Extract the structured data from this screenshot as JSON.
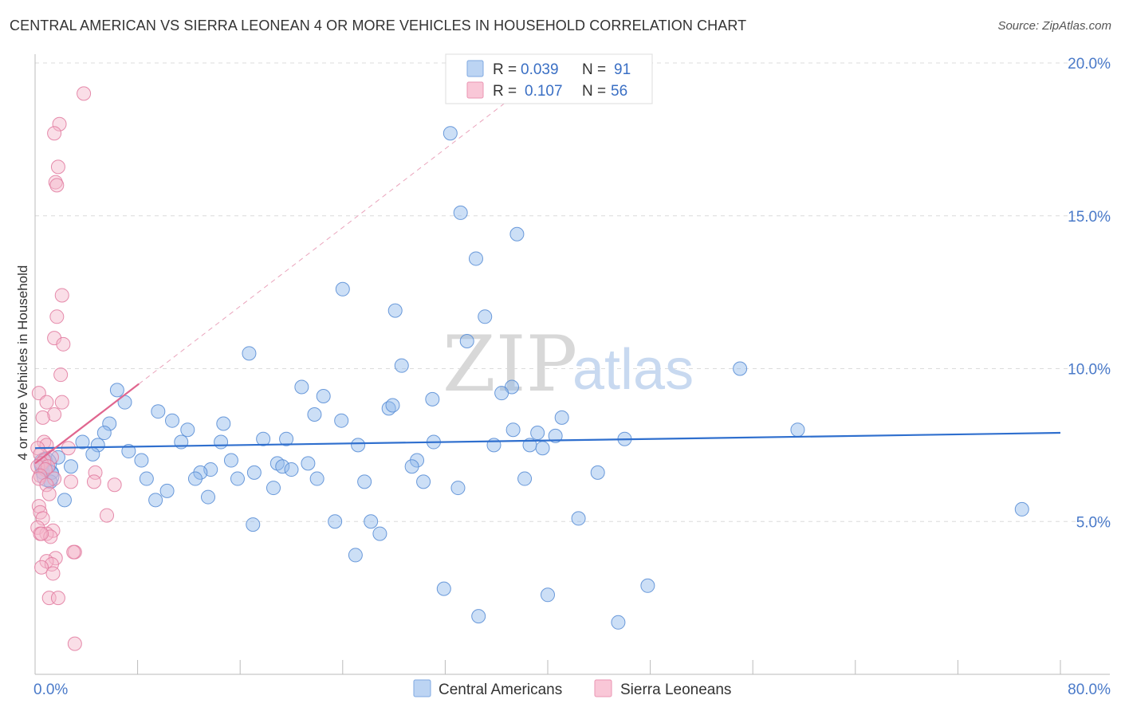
{
  "title": "CENTRAL AMERICAN VS SIERRA LEONEAN 4 OR MORE VEHICLES IN HOUSEHOLD CORRELATION CHART",
  "source": "Source: ZipAtlas.com",
  "watermark": {
    "zip": "ZIP",
    "atlas": "atlas"
  },
  "chart_data": {
    "type": "scatter",
    "xlabel": "",
    "ylabel": "4 or more Vehicles in Household",
    "xlim": [
      0,
      80
    ],
    "ylim": [
      0,
      20.6
    ],
    "x_tick_labels": [
      {
        "value": 0,
        "label": "0.0%"
      },
      {
        "value": 80,
        "label": "80.0%"
      }
    ],
    "y_tick_labels": [
      {
        "value": 5,
        "label": "5.0%"
      },
      {
        "value": 10,
        "label": "10.0%"
      },
      {
        "value": 15,
        "label": "15.0%"
      },
      {
        "value": 20,
        "label": "20.0%"
      }
    ],
    "legend": [
      {
        "name": "Central Americans",
        "r_label": "R =",
        "r": "0.039",
        "n_label": "N =",
        "n": "91",
        "color": "#8db8ec",
        "stroke": "#5b8fd6"
      },
      {
        "name": "Sierra Leoneans",
        "r_label": "R =",
        "r": "0.107",
        "n_label": "N =",
        "n": "56",
        "color": "#f5b5ca",
        "stroke": "#e27ea2"
      }
    ],
    "series": [
      {
        "name": "Central Americans",
        "color": "#8db8ec",
        "stroke": "#5b8fd6",
        "trend": {
          "x": [
            0,
            80
          ],
          "y": [
            7.4,
            7.9
          ],
          "color": "#2f6fce"
        },
        "points": [
          [
            32.4,
            17.7
          ],
          [
            33.2,
            15.1
          ],
          [
            37.6,
            14.4
          ],
          [
            34.4,
            13.6
          ],
          [
            24,
            12.6
          ],
          [
            28.1,
            11.9
          ],
          [
            35.1,
            11.7
          ],
          [
            33.7,
            10.9
          ],
          [
            16.7,
            10.5
          ],
          [
            28.6,
            10.1
          ],
          [
            55,
            10.0
          ],
          [
            6.4,
            9.3
          ],
          [
            20.8,
            9.4
          ],
          [
            37.2,
            9.4
          ],
          [
            36.4,
            9.2
          ],
          [
            22.5,
            9.1
          ],
          [
            31,
            9.0
          ],
          [
            7.0,
            8.9
          ],
          [
            27.6,
            8.7
          ],
          [
            27.9,
            8.8
          ],
          [
            9.6,
            8.6
          ],
          [
            21.8,
            8.5
          ],
          [
            23.9,
            8.3
          ],
          [
            41.1,
            8.4
          ],
          [
            10.7,
            8.3
          ],
          [
            5.8,
            8.2
          ],
          [
            14.7,
            8.2
          ],
          [
            11.9,
            8.0
          ],
          [
            37.3,
            8.0
          ],
          [
            39.2,
            7.9
          ],
          [
            40.6,
            7.8
          ],
          [
            5.4,
            7.9
          ],
          [
            59.5,
            8.0
          ],
          [
            17.8,
            7.7
          ],
          [
            19.6,
            7.7
          ],
          [
            46.0,
            7.7
          ],
          [
            31.1,
            7.6
          ],
          [
            14.5,
            7.6
          ],
          [
            11.4,
            7.6
          ],
          [
            3.7,
            7.6
          ],
          [
            4.9,
            7.5
          ],
          [
            25.2,
            7.5
          ],
          [
            35.8,
            7.5
          ],
          [
            38.6,
            7.5
          ],
          [
            39.6,
            7.4
          ],
          [
            7.3,
            7.3
          ],
          [
            4.5,
            7.2
          ],
          [
            8.3,
            7.0
          ],
          [
            15.3,
            7.0
          ],
          [
            29.8,
            7.0
          ],
          [
            18.9,
            6.9
          ],
          [
            21.3,
            6.9
          ],
          [
            29.4,
            6.8
          ],
          [
            19.3,
            6.8
          ],
          [
            20.0,
            6.7
          ],
          [
            13.7,
            6.7
          ],
          [
            12.9,
            6.6
          ],
          [
            17.1,
            6.6
          ],
          [
            2.8,
            6.8
          ],
          [
            1.8,
            7.1
          ],
          [
            1.3,
            6.6
          ],
          [
            43.9,
            6.6
          ],
          [
            8.7,
            6.4
          ],
          [
            12.5,
            6.4
          ],
          [
            15.8,
            6.4
          ],
          [
            22.0,
            6.4
          ],
          [
            38.2,
            6.4
          ],
          [
            25.7,
            6.3
          ],
          [
            30.3,
            6.3
          ],
          [
            1.2,
            6.3
          ],
          [
            10.3,
            6.0
          ],
          [
            18.6,
            6.1
          ],
          [
            33.0,
            6.1
          ],
          [
            9.4,
            5.7
          ],
          [
            13.5,
            5.8
          ],
          [
            2.3,
            5.7
          ],
          [
            77.0,
            5.4
          ],
          [
            42.4,
            5.1
          ],
          [
            17.0,
            4.9
          ],
          [
            23.4,
            5.0
          ],
          [
            26.2,
            5.0
          ],
          [
            26.9,
            4.6
          ],
          [
            25.0,
            3.9
          ],
          [
            31.9,
            2.8
          ],
          [
            40.0,
            2.6
          ],
          [
            47.8,
            2.9
          ],
          [
            34.6,
            1.9
          ],
          [
            45.5,
            1.7
          ],
          [
            0.8,
            7.0
          ],
          [
            0.6,
            6.6
          ],
          [
            0.5,
            6.8
          ]
        ],
        "big_points": [
          [
            0.8,
            6.9
          ],
          [
            1.0,
            6.5
          ]
        ]
      },
      {
        "name": "Sierra Leoneans",
        "color": "#f5b5ca",
        "stroke": "#e27ea2",
        "trend": {
          "x": [
            0,
            8.1
          ],
          "y": [
            6.9,
            9.5
          ],
          "color": "#e0668f"
        },
        "trend_ext": {
          "x": [
            8.1,
            37
          ],
          "y": [
            9.5,
            18.8
          ]
        },
        "points": [
          [
            3.8,
            19.0
          ],
          [
            1.9,
            18.0
          ],
          [
            1.5,
            17.7
          ],
          [
            1.8,
            16.6
          ],
          [
            1.6,
            16.1
          ],
          [
            1.7,
            16.0
          ],
          [
            2.1,
            12.4
          ],
          [
            1.7,
            11.7
          ],
          [
            1.5,
            11.0
          ],
          [
            2.2,
            10.8
          ],
          [
            2.0,
            9.8
          ],
          [
            0.3,
            9.2
          ],
          [
            0.9,
            8.9
          ],
          [
            2.1,
            8.9
          ],
          [
            1.5,
            8.5
          ],
          [
            0.6,
            8.4
          ],
          [
            0.7,
            7.6
          ],
          [
            0.9,
            7.5
          ],
          [
            0.2,
            7.4
          ],
          [
            2.6,
            7.4
          ],
          [
            0.4,
            7.2
          ],
          [
            1.3,
            7.1
          ],
          [
            0.7,
            7.0
          ],
          [
            0.5,
            6.9
          ],
          [
            0.2,
            6.8
          ],
          [
            1.0,
            6.8
          ],
          [
            0.8,
            6.7
          ],
          [
            0.4,
            6.5
          ],
          [
            1.5,
            6.4
          ],
          [
            0.3,
            6.4
          ],
          [
            4.7,
            6.6
          ],
          [
            0.9,
            6.2
          ],
          [
            2.8,
            6.3
          ],
          [
            4.6,
            6.3
          ],
          [
            6.2,
            6.2
          ],
          [
            1.1,
            5.9
          ],
          [
            0.3,
            5.5
          ],
          [
            0.4,
            5.3
          ],
          [
            5.6,
            5.2
          ],
          [
            0.6,
            5.1
          ],
          [
            0.2,
            4.8
          ],
          [
            1.4,
            4.7
          ],
          [
            0.9,
            4.6
          ],
          [
            0.4,
            4.6
          ],
          [
            1.2,
            4.5
          ],
          [
            3.1,
            4.0
          ],
          [
            3.0,
            4.0
          ],
          [
            0.5,
            4.6
          ],
          [
            1.6,
            3.8
          ],
          [
            0.9,
            3.7
          ],
          [
            1.3,
            3.6
          ],
          [
            0.5,
            3.5
          ],
          [
            1.4,
            3.3
          ],
          [
            1.1,
            2.5
          ],
          [
            1.8,
            2.5
          ],
          [
            3.1,
            1.0
          ]
        ]
      }
    ]
  }
}
